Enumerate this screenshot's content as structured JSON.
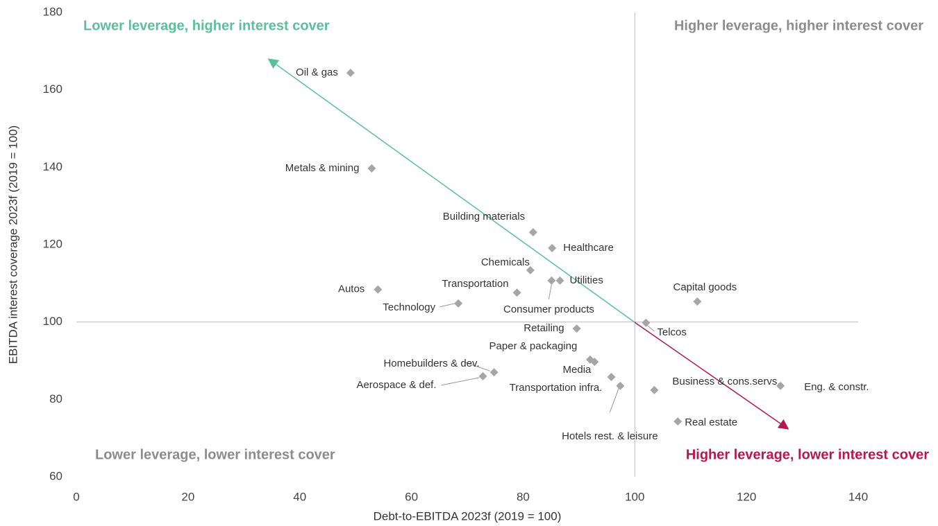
{
  "chart_data": {
    "type": "scatter",
    "xlabel": "Debt-to-EBITDA 2023f (2019 = 100)",
    "ylabel": "EBITDA interest coverage 2023f  (2019 = 100)",
    "xlim": [
      0,
      140
    ],
    "ylim": [
      60,
      180
    ],
    "xticks": [
      0,
      20,
      40,
      60,
      80,
      100,
      120,
      140
    ],
    "yticks": [
      60,
      80,
      100,
      120,
      140,
      160,
      180
    ],
    "ref_lines": {
      "x": 100,
      "y": 100
    },
    "color": "#a6a6a6",
    "quadrants": [
      {
        "label": "Lower leverage, higher interest cover",
        "color": "#5cbf9b"
      },
      {
        "label": "Higher leverage, higher interest cover",
        "color": "#8c8c8c"
      },
      {
        "label": "Lower leverage, lower interest cover",
        "color": "#8c8c8c"
      },
      {
        "label": "Higher leverage, lower interest cover",
        "color": "#b5174f"
      }
    ],
    "labels": [
      "Oil & gas",
      "Metals & mining",
      "Building materials",
      "Healthcare",
      "Chemicals",
      "Transportation",
      "Utilities",
      "Consumer products",
      "Autos",
      "Technology",
      "Capital goods",
      "Retailing",
      "Telcos",
      "Paper & packaging",
      "Media",
      "Transportation infra.",
      "Hotels rest. & leisure",
      "Homebuilders & dev.",
      "Aerospace & def.",
      "Business & cons.servs.",
      "Eng. & constr.",
      "Real estate"
    ],
    "x": [
      49.1,
      52.9,
      81.8,
      85.2,
      81.3,
      78.9,
      86.6,
      85.1,
      54.0,
      68.4,
      111.2,
      89.6,
      102.0,
      92.0,
      92.8,
      95.8,
      97.4,
      74.8,
      72.8,
      103.5,
      126.1,
      107.7
    ],
    "y": [
      164.4,
      139.7,
      123.2,
      119.1,
      113.4,
      107.6,
      110.7,
      110.7,
      108.4,
      104.8,
      105.3,
      98.3,
      99.8,
      90.3,
      89.7,
      85.8,
      83.5,
      87.0,
      86.0,
      82.4,
      83.5,
      74.3
    ]
  }
}
